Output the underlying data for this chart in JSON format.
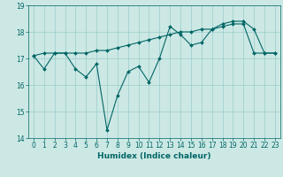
{
  "xlabel": "Humidex (Indice chaleur)",
  "background_color": "#cce8e4",
  "grid_color": "#99cccc",
  "line_color": "#006666",
  "x_values": [
    0,
    1,
    2,
    3,
    4,
    5,
    6,
    7,
    8,
    9,
    10,
    11,
    12,
    13,
    14,
    15,
    16,
    17,
    18,
    19,
    20,
    21,
    22,
    23
  ],
  "series1": [
    17.1,
    16.6,
    17.2,
    17.2,
    16.6,
    16.3,
    16.8,
    14.3,
    15.6,
    16.5,
    16.7,
    16.1,
    17.0,
    18.2,
    17.9,
    17.5,
    17.6,
    18.1,
    18.3,
    18.4,
    18.4,
    18.1,
    17.2,
    17.2
  ],
  "series2": [
    17.1,
    17.2,
    17.2,
    17.2,
    17.2,
    17.2,
    17.3,
    17.3,
    17.4,
    17.5,
    17.6,
    17.7,
    17.8,
    17.9,
    18.0,
    18.0,
    18.1,
    18.1,
    18.2,
    18.3,
    18.3,
    17.2,
    17.2,
    17.2
  ],
  "ylim": [
    14.0,
    19.0
  ],
  "xlim": [
    -0.5,
    23.5
  ],
  "yticks": [
    14,
    15,
    16,
    17,
    18,
    19
  ],
  "xticks": [
    0,
    1,
    2,
    3,
    4,
    5,
    6,
    7,
    8,
    9,
    10,
    11,
    12,
    13,
    14,
    15,
    16,
    17,
    18,
    19,
    20,
    21,
    22,
    23
  ],
  "tick_fontsize": 5.5,
  "label_fontsize": 6.5
}
